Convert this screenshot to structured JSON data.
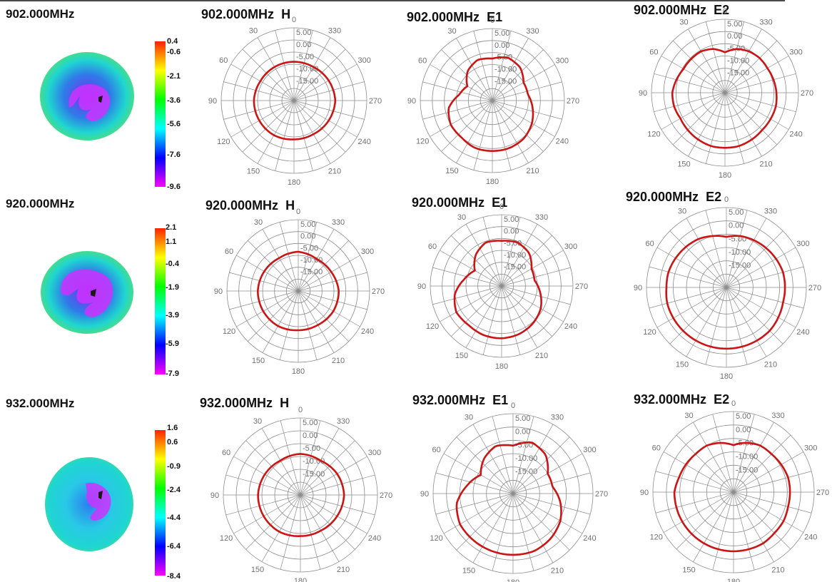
{
  "rows": [
    {
      "freq_label": "902.000MHz",
      "colorbar": {
        "ticks": [
          "0.4",
          "-0.6",
          "-2.1",
          "-3.6",
          "-5.6",
          "-7.6",
          "-9.6"
        ],
        "tick_fracs": [
          0.0,
          0.07,
          0.24,
          0.41,
          0.57,
          0.78,
          1.0
        ]
      }
    },
    {
      "freq_label": "920.000MHz",
      "colorbar": {
        "ticks": [
          "2.1",
          "1.1",
          "-0.4",
          "-1.9",
          "-3.9",
          "-5.9",
          "-7.9"
        ],
        "tick_fracs": [
          0.0,
          0.09,
          0.25,
          0.41,
          0.6,
          0.79,
          1.0
        ]
      }
    },
    {
      "freq_label": "932.000MHz",
      "colorbar": {
        "ticks": [
          "1.6",
          "0.6",
          "-0.9",
          "-2.4",
          "-4.4",
          "-6.4",
          "-8.4"
        ],
        "tick_fracs": [
          0.0,
          0.09,
          0.26,
          0.42,
          0.61,
          0.79,
          1.0
        ]
      }
    }
  ],
  "colors": {
    "pattern_line": "#cc1414",
    "grid": "#8c8c8c",
    "tick_text": "#707070",
    "colorbar_stops": [
      "#ff2200",
      "#ffff00",
      "#00ff00",
      "#00ffff",
      "#0000ff",
      "#ff00ff"
    ]
  },
  "chart_data": [
    {
      "type": "polar-line",
      "title": "902.000MHz",
      "plane": "H",
      "radial_ticks": [
        "5.00",
        "0.00",
        "-5.00",
        "-10.00",
        "-15.00"
      ],
      "angle_ticks": [
        0,
        30,
        60,
        90,
        120,
        150,
        180,
        210,
        240,
        270,
        300,
        330
      ],
      "rlim": [
        -25,
        5
      ],
      "series": [
        {
          "angles": [
            0,
            30,
            60,
            90,
            120,
            150,
            180,
            210,
            240,
            270,
            300,
            330
          ],
          "values": [
            -9,
            -9,
            -9,
            -8.5,
            -8.5,
            -8.5,
            -9,
            -9,
            -8.5,
            -8,
            -8.5,
            -9
          ]
        }
      ]
    },
    {
      "type": "polar-line",
      "title": "902.000MHz",
      "plane": "E1",
      "radial_ticks": [
        "5.00",
        "0.00",
        "-5.00",
        "-10.00",
        "-15.00"
      ],
      "angle_ticks": [
        0,
        30,
        60,
        90,
        120,
        150,
        180,
        210,
        240,
        270,
        300,
        330
      ],
      "rlim": [
        -25,
        5
      ],
      "series": [
        {
          "angles": [
            0,
            20,
            40,
            60,
            80,
            100,
            120,
            140,
            160,
            180,
            200,
            220,
            240,
            260,
            280,
            300,
            320,
            340
          ],
          "values": [
            -7.5,
            -7,
            -9,
            -13,
            -11,
            -6.5,
            -5,
            -5,
            -4,
            -4,
            -4,
            -4.5,
            -6,
            -8,
            -10,
            -10,
            -7,
            -6
          ]
        }
      ]
    },
    {
      "type": "polar-line",
      "title": "902.000MHz",
      "plane": "E2",
      "radial_ticks": [
        "5.00",
        "0.00",
        "-5.00",
        "-10.00",
        "-15.00"
      ],
      "angle_ticks": [
        0,
        30,
        60,
        90,
        120,
        150,
        180,
        210,
        240,
        270,
        300,
        330
      ],
      "rlim": [
        -25,
        5
      ],
      "series": [
        {
          "angles": [
            0,
            15,
            30,
            45,
            60,
            75,
            90,
            105,
            120,
            135,
            150,
            165,
            180,
            195,
            210,
            225,
            240,
            255,
            270,
            285,
            300,
            315,
            330,
            345
          ],
          "values": [
            -8.5,
            -6.5,
            -5.5,
            -5.5,
            -5.5,
            -4.5,
            -3.5,
            -3.5,
            -4,
            -3.5,
            -3,
            -2.5,
            -2.5,
            -2.5,
            -3,
            -3.5,
            -3.5,
            -3.5,
            -4,
            -4.5,
            -5,
            -5,
            -5.5,
            -6.5
          ]
        }
      ]
    },
    {
      "type": "polar-line",
      "title": "920.000MHz",
      "plane": "H",
      "radial_ticks": [
        "5.00",
        "0.00",
        "-5.00",
        "-10.00",
        "-15.00"
      ],
      "angle_ticks": [
        0,
        30,
        60,
        90,
        120,
        150,
        180,
        210,
        240,
        270,
        300,
        330
      ],
      "rlim": [
        -25,
        5
      ],
      "series": [
        {
          "angles": [
            0,
            30,
            60,
            90,
            120,
            150,
            180,
            210,
            240,
            270,
            300,
            330
          ],
          "values": [
            -8.5,
            -9,
            -8.5,
            -8,
            -8,
            -8,
            -8.5,
            -8.5,
            -8,
            -8,
            -9,
            -9.5
          ]
        }
      ]
    },
    {
      "type": "polar-line",
      "title": "920.000MHz",
      "plane": "E1",
      "radial_ticks": [
        "5.00",
        "0.00",
        "-5.00",
        "-10.00",
        "-15.00"
      ],
      "angle_ticks": [
        0,
        30,
        60,
        90,
        120,
        150,
        180,
        210,
        240,
        270,
        300,
        330
      ],
      "rlim": [
        -25,
        5
      ],
      "series": [
        {
          "angles": [
            0,
            20,
            40,
            60,
            80,
            100,
            120,
            140,
            160,
            180,
            200,
            220,
            240,
            260,
            280,
            300,
            320,
            340
          ],
          "values": [
            -6,
            -5.5,
            -8,
            -12,
            -9,
            -5,
            -3,
            -3.5,
            -3,
            -3,
            -3.5,
            -4.5,
            -6,
            -8.5,
            -11,
            -10.5,
            -7,
            -5.5
          ]
        }
      ]
    },
    {
      "type": "polar-line",
      "title": "920.000MHz",
      "plane": "E2",
      "radial_ticks": [
        "5.00",
        "0.00",
        "-5.00",
        "-10.00",
        "-15.00"
      ],
      "angle_ticks": [
        0,
        30,
        60,
        90,
        120,
        150,
        180,
        210,
        240,
        270,
        300,
        330
      ],
      "rlim": [
        -25,
        5
      ],
      "series": [
        {
          "angles": [
            0,
            15,
            30,
            45,
            60,
            75,
            90,
            105,
            120,
            135,
            150,
            165,
            180,
            195,
            210,
            225,
            240,
            255,
            270,
            285,
            300,
            315,
            330,
            345
          ],
          "values": [
            -6,
            -5,
            -4,
            -3.5,
            -3,
            -2.5,
            -2.5,
            -2,
            -2,
            -2,
            -2,
            -2,
            -2,
            -2,
            -2,
            -2,
            -2.5,
            -3,
            -3,
            -3,
            -3.5,
            -4,
            -4.5,
            -5
          ]
        }
      ]
    },
    {
      "type": "polar-line",
      "title": "932.000MHz",
      "plane": "H",
      "radial_ticks": [
        "5.00",
        "0.00",
        "-5.00",
        "-10.00",
        "-15.00"
      ],
      "angle_ticks": [
        0,
        30,
        60,
        90,
        120,
        150,
        180,
        210,
        240,
        270,
        300,
        330
      ],
      "rlim": [
        -25,
        5
      ],
      "series": [
        {
          "angles": [
            0,
            30,
            60,
            90,
            120,
            150,
            180,
            210,
            240,
            270,
            300,
            330
          ],
          "values": [
            -9,
            -9.5,
            -9,
            -8.5,
            -8.5,
            -8.5,
            -9,
            -9,
            -8.5,
            -8,
            -8.5,
            -9.5
          ]
        }
      ]
    },
    {
      "type": "polar-line",
      "title": "932.000MHz",
      "plane": "E1",
      "radial_ticks": [
        "5.00",
        "0.00",
        "-5.00",
        "-10.00",
        "-15.00"
      ],
      "angle_ticks": [
        0,
        30,
        60,
        90,
        120,
        150,
        180,
        210,
        240,
        270,
        300,
        330
      ],
      "rlim": [
        -25,
        5
      ],
      "series": [
        {
          "angles": [
            0,
            20,
            40,
            60,
            80,
            100,
            120,
            140,
            160,
            180,
            200,
            220,
            240,
            260,
            280,
            300,
            320,
            340
          ],
          "values": [
            -7,
            -6,
            -8,
            -11,
            -7.5,
            -3.5,
            -2,
            -2,
            -2,
            -2,
            -2,
            -3,
            -4.5,
            -7,
            -10,
            -10,
            -6,
            -4.5
          ]
        }
      ]
    },
    {
      "type": "polar-line",
      "title": "932.000MHz",
      "plane": "E2",
      "radial_ticks": [
        "5.00",
        "0.00",
        "-5.00",
        "-10.00",
        "-15.00"
      ],
      "angle_ticks": [
        0,
        30,
        60,
        90,
        120,
        150,
        180,
        210,
        240,
        270,
        300,
        330
      ],
      "rlim": [
        -25,
        5
      ],
      "series": [
        {
          "angles": [
            0,
            15,
            30,
            45,
            60,
            75,
            90,
            105,
            120,
            135,
            150,
            165,
            180,
            195,
            210,
            225,
            240,
            255,
            270,
            285,
            300,
            315,
            330,
            345
          ],
          "values": [
            -7.5,
            -6,
            -5,
            -5,
            -4.5,
            -4,
            -3,
            -3,
            -3,
            -3,
            -3,
            -3,
            -3,
            -3,
            -3,
            -3.5,
            -3.5,
            -4,
            -4,
            -4,
            -4.5,
            -5,
            -5,
            -6
          ]
        }
      ]
    }
  ]
}
